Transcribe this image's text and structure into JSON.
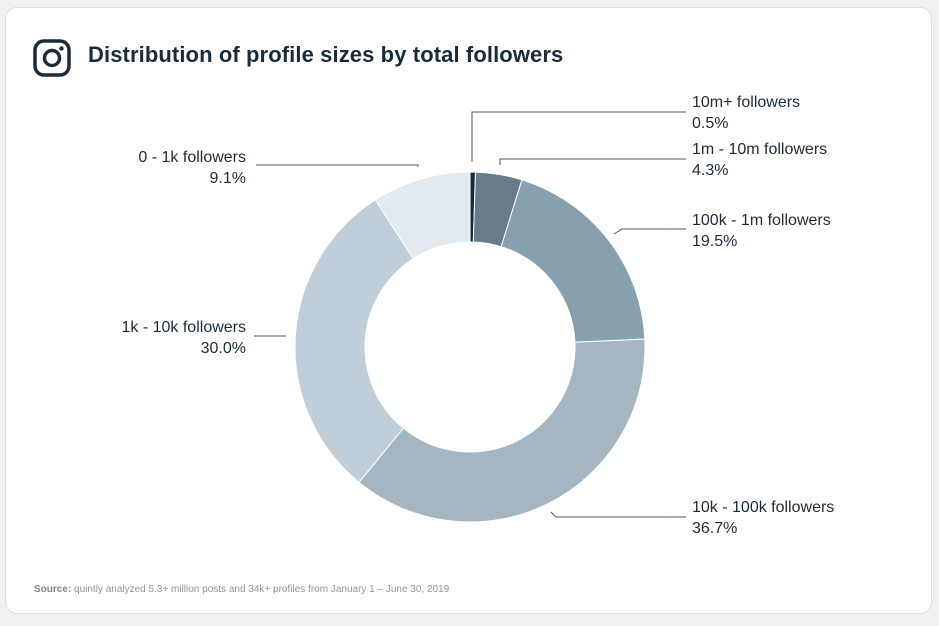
{
  "header": {
    "title": "Distribution of profile sizes by total followers",
    "icon": "instagram-icon"
  },
  "footer": {
    "source_label": "Source:",
    "source_text": "quintly analyzed 5.3+ million posts and 34k+ profiles from January 1 – June 30, 2019"
  },
  "chart_data": {
    "type": "pie",
    "title": "Distribution of profile sizes by total followers",
    "donut": true,
    "slices": [
      {
        "label": "10m+ followers",
        "value": 0.5,
        "value_label": "0.5%",
        "color": "#1c2b38"
      },
      {
        "label": "1m - 10m followers",
        "value": 4.3,
        "value_label": "4.3%",
        "color": "#677c8a"
      },
      {
        "label": "100k - 1m followers",
        "value": 19.5,
        "value_label": "19.5%",
        "color": "#87a0ae"
      },
      {
        "label": "10k - 100k followers",
        "value": 36.7,
        "value_label": "36.7%",
        "color": "#a3b6c2"
      },
      {
        "label": "1k - 10k followers",
        "value": 30.0,
        "value_label": "30.0%",
        "color": "#bfced8"
      },
      {
        "label": "0 - 1k followers",
        "value": 9.1,
        "value_label": "9.1%",
        "color": "#e2eaef"
      }
    ]
  }
}
